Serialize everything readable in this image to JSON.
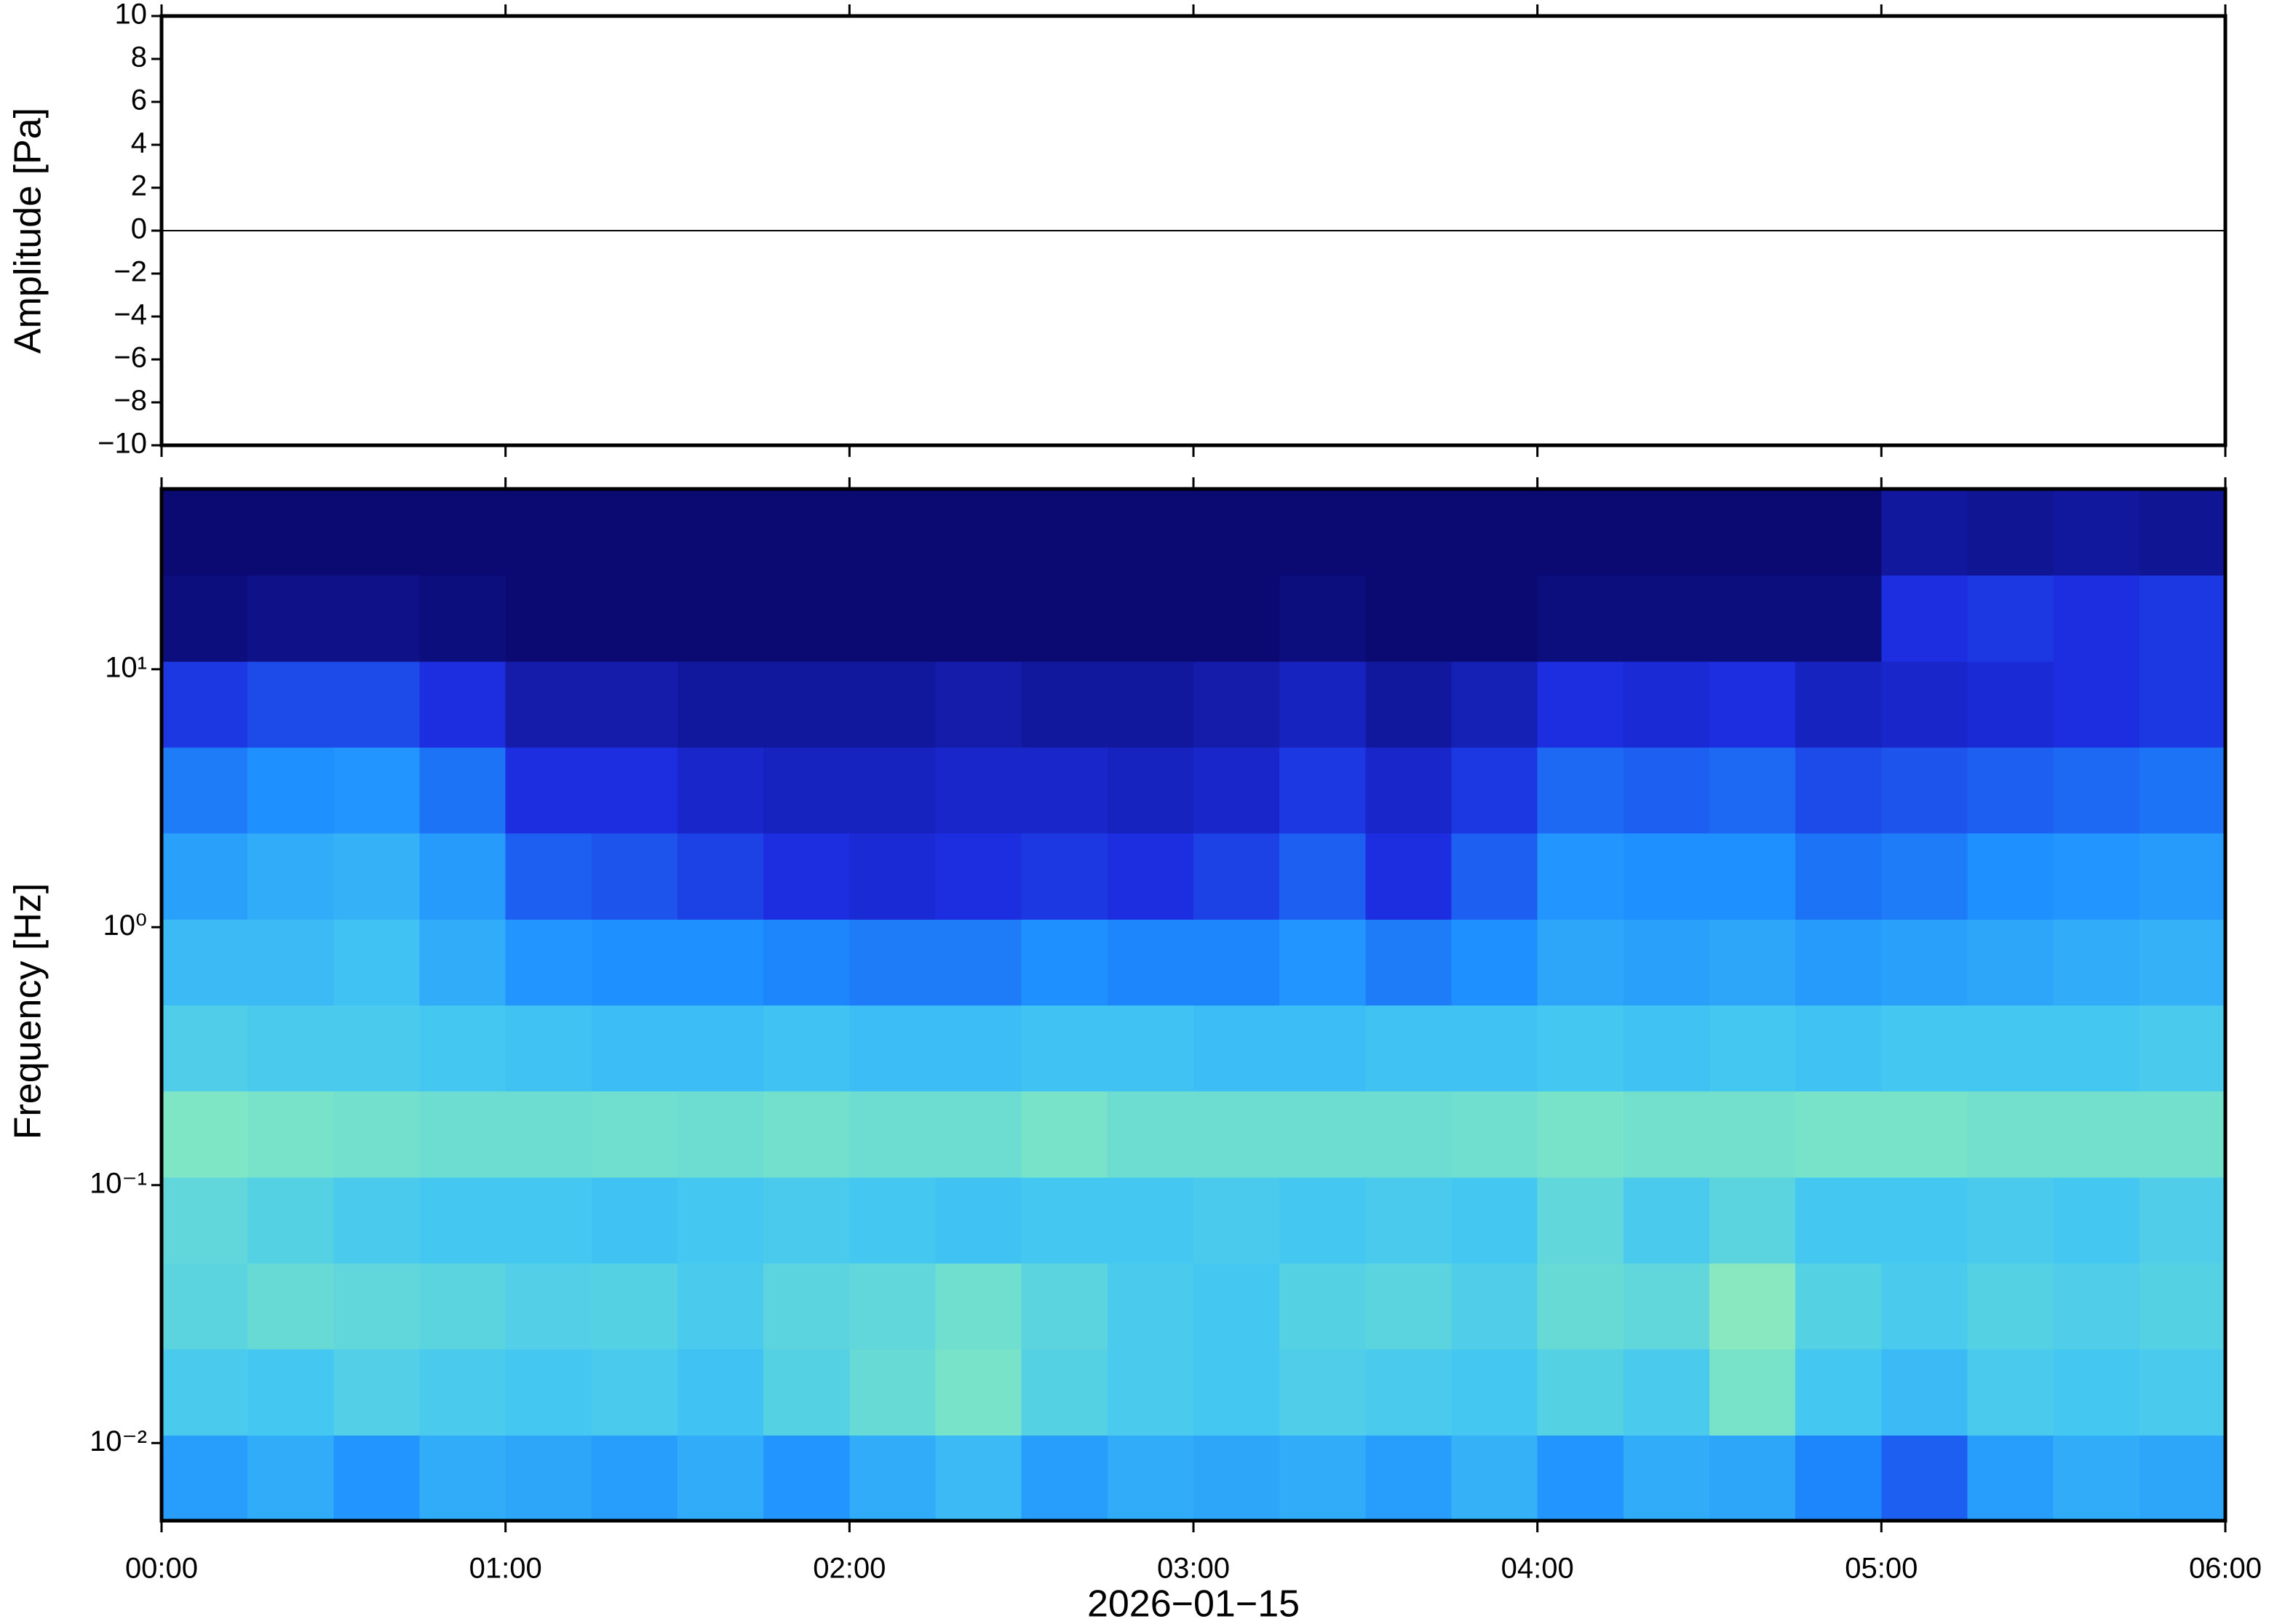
{
  "chart_data": [
    {
      "type": "line",
      "ylabel": "Amplitude [Pa]",
      "xlim": [
        0,
        360
      ],
      "ylim": [
        -10,
        10
      ],
      "yticks": [
        {
          "value": -10,
          "label": "−10"
        },
        {
          "value": -8,
          "label": "−8"
        },
        {
          "value": -6,
          "label": "−6"
        },
        {
          "value": -4,
          "label": "−4"
        },
        {
          "value": -2,
          "label": "−2"
        },
        0,
        2,
        4,
        6,
        8,
        10
      ],
      "x": [
        0,
        360
      ],
      "values": [
        0,
        0
      ],
      "color": "#000000"
    },
    {
      "type": "heatmap",
      "ylabel": "Frequency [Hz]",
      "xlabel": "2026−01−15",
      "log_y": true,
      "xlim": [
        0,
        360
      ],
      "ylim": [
        0.005,
        50
      ],
      "xticks": [
        {
          "value": 0,
          "label": "00:00"
        },
        {
          "value": 60,
          "label": "01:00"
        },
        {
          "value": 120,
          "label": "02:00"
        },
        {
          "value": 180,
          "label": "03:00"
        },
        {
          "value": 240,
          "label": "04:00"
        },
        {
          "value": 300,
          "label": "05:00"
        },
        {
          "value": 360,
          "label": "06:00"
        }
      ],
      "yticks": [
        {
          "value": 0.01,
          "label": "10⁻²"
        },
        {
          "value": 0.1,
          "label": "10⁻¹"
        },
        {
          "value": 1,
          "label": "10⁰"
        },
        {
          "value": 10,
          "label": "10¹"
        }
      ],
      "colormap": [
        "#0b0a72",
        "#1c2ee0",
        "#1e90ff",
        "#44c8f2",
        "#7ee6c4",
        "#e8faa0"
      ],
      "x": [
        7.5,
        22.5,
        37.5,
        52.5,
        67.5,
        82.5,
        97.5,
        112.5,
        127.5,
        142.5,
        157.5,
        172.5,
        187.5,
        202.5,
        217.5,
        232.5,
        247.5,
        262.5,
        277.5,
        292.5,
        307.5,
        322.5,
        337.5,
        352.5
      ],
      "y": [
        0.0073,
        0.0158,
        0.034,
        0.073,
        0.158,
        0.34,
        0.73,
        1.58,
        3.4,
        7.3,
        15.8,
        34
      ],
      "values": [
        [
          0.45,
          0.5,
          0.42,
          0.5,
          0.48,
          0.45,
          0.5,
          0.42,
          0.5,
          0.55,
          0.45,
          0.5,
          0.48,
          0.5,
          0.45,
          0.52,
          0.42,
          0.5,
          0.48,
          0.38,
          0.3,
          0.45,
          0.5,
          0.48
        ],
        [
          0.62,
          0.6,
          0.65,
          0.62,
          0.6,
          0.62,
          0.58,
          0.66,
          0.72,
          0.78,
          0.66,
          0.62,
          0.6,
          0.64,
          0.62,
          0.6,
          0.66,
          0.62,
          0.78,
          0.6,
          0.55,
          0.62,
          0.6,
          0.62
        ],
        [
          0.68,
          0.72,
          0.7,
          0.68,
          0.65,
          0.66,
          0.62,
          0.68,
          0.7,
          0.75,
          0.68,
          0.62,
          0.6,
          0.66,
          0.68,
          0.64,
          0.72,
          0.7,
          0.82,
          0.66,
          0.62,
          0.66,
          0.64,
          0.66
        ],
        [
          0.7,
          0.66,
          0.62,
          0.6,
          0.6,
          0.58,
          0.6,
          0.62,
          0.6,
          0.58,
          0.6,
          0.6,
          0.62,
          0.6,
          0.62,
          0.6,
          0.7,
          0.62,
          0.68,
          0.6,
          0.6,
          0.62,
          0.6,
          0.64
        ],
        [
          0.8,
          0.78,
          0.76,
          0.74,
          0.74,
          0.75,
          0.74,
          0.76,
          0.74,
          0.74,
          0.78,
          0.74,
          0.74,
          0.74,
          0.74,
          0.75,
          0.78,
          0.76,
          0.76,
          0.78,
          0.78,
          0.76,
          0.76,
          0.76
        ],
        [
          0.64,
          0.62,
          0.62,
          0.6,
          0.58,
          0.56,
          0.56,
          0.58,
          0.56,
          0.56,
          0.58,
          0.58,
          0.56,
          0.56,
          0.58,
          0.58,
          0.6,
          0.58,
          0.6,
          0.58,
          0.6,
          0.6,
          0.6,
          0.62
        ],
        [
          0.55,
          0.55,
          0.58,
          0.5,
          0.42,
          0.4,
          0.4,
          0.38,
          0.36,
          0.36,
          0.4,
          0.38,
          0.38,
          0.42,
          0.36,
          0.4,
          0.48,
          0.46,
          0.48,
          0.44,
          0.46,
          0.48,
          0.5,
          0.52
        ],
        [
          0.46,
          0.5,
          0.52,
          0.44,
          0.3,
          0.28,
          0.24,
          0.2,
          0.18,
          0.2,
          0.22,
          0.2,
          0.24,
          0.3,
          0.2,
          0.3,
          0.42,
          0.4,
          0.4,
          0.34,
          0.36,
          0.4,
          0.42,
          0.44
        ],
        [
          0.36,
          0.4,
          0.42,
          0.34,
          0.2,
          0.2,
          0.16,
          0.14,
          0.14,
          0.16,
          0.16,
          0.14,
          0.16,
          0.22,
          0.16,
          0.22,
          0.32,
          0.3,
          0.32,
          0.26,
          0.28,
          0.3,
          0.32,
          0.34
        ],
        [
          0.22,
          0.26,
          0.26,
          0.2,
          0.1,
          0.1,
          0.08,
          0.08,
          0.08,
          0.1,
          0.08,
          0.08,
          0.1,
          0.14,
          0.08,
          0.12,
          0.2,
          0.18,
          0.2,
          0.14,
          0.16,
          0.18,
          0.2,
          0.22
        ],
        [
          0.02,
          0.04,
          0.04,
          0.02,
          0,
          0,
          0,
          0,
          0,
          0,
          0,
          0,
          0,
          0.02,
          0,
          0,
          0.02,
          0.02,
          0.02,
          0.02,
          0.2,
          0.22,
          0.2,
          0.22
        ],
        [
          0,
          0,
          0,
          0,
          0,
          0,
          0,
          0,
          0,
          0,
          0,
          0,
          0,
          0,
          0,
          0,
          0,
          0,
          0,
          0,
          0.08,
          0.06,
          0.08,
          0.06
        ]
      ]
    }
  ]
}
